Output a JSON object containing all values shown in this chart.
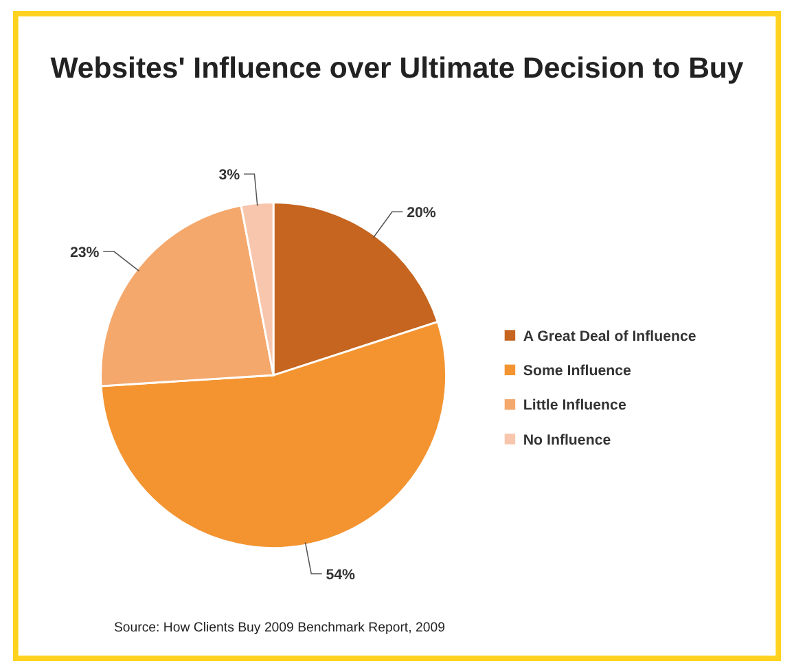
{
  "chart_data": {
    "type": "pie",
    "title": "Websites' Influence over Ultimate Decision to Buy",
    "categories": [
      "A Great Deal of Influence",
      "Some Influence",
      "Little Influence",
      "No Influence"
    ],
    "values": [
      20,
      54,
      23,
      3
    ],
    "value_labels": [
      "20%",
      "54%",
      "23%",
      "3%"
    ],
    "colors": [
      "#c5651f",
      "#f39431",
      "#f4a86c",
      "#f8c6ac"
    ],
    "legend": "right",
    "annotations": [
      "Source: How Clients Buy 2009 Benchmark Report, 2009"
    ]
  }
}
